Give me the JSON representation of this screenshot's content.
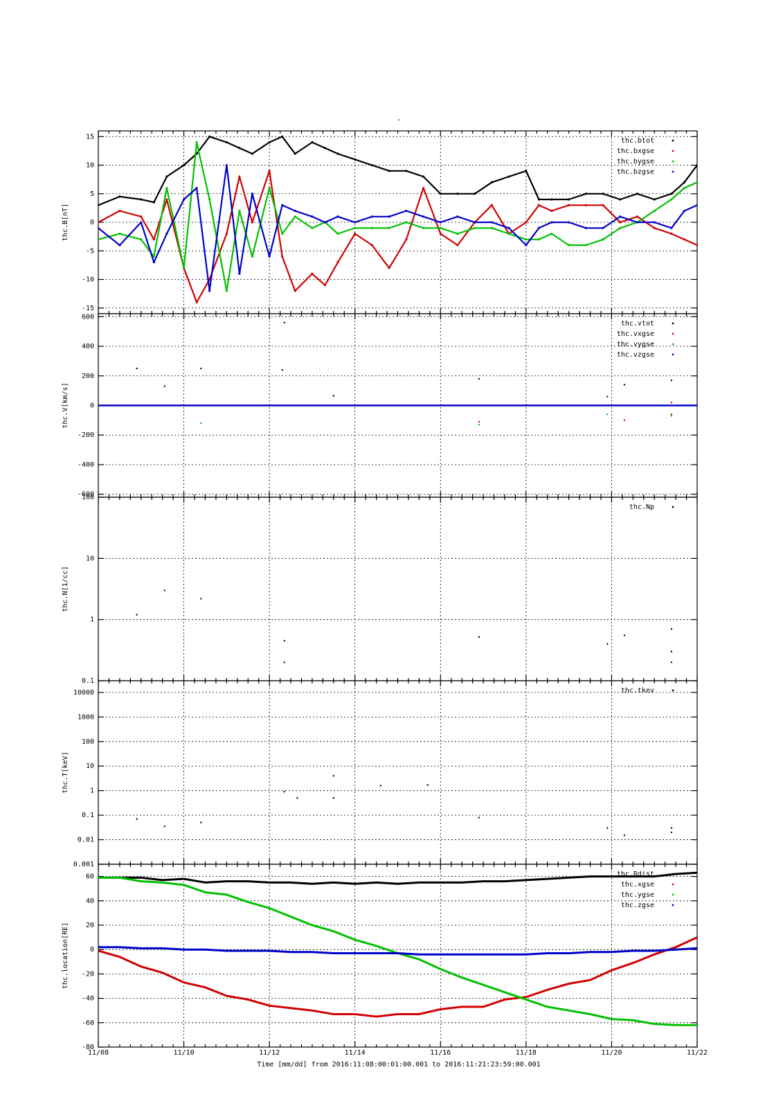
{
  "figure": {
    "title": "-",
    "time_label": "Time [mm/dd]  from 2016:11:08:00:01:00.001  to  2016:11:21:23:59:00.001",
    "x_ticks": [
      "11/08",
      "11/10",
      "11/12",
      "11/14",
      "11/16",
      "11/18",
      "11/20",
      "11/22"
    ]
  },
  "colors": {
    "black": "#000000",
    "red": "#d00000",
    "green": "#00c000",
    "blue": "#0000c8"
  },
  "chart_data": [
    {
      "type": "scatter",
      "ylabel": "thc.B[nT]",
      "ylim": [
        -16,
        16
      ],
      "yscale": "linear",
      "yticks": [
        -15,
        -10,
        -5,
        0,
        5,
        10,
        15
      ],
      "grid": true,
      "legend_position": "top-right",
      "x_unit": "day of November 2016",
      "xlim": [
        8,
        22
      ],
      "series": [
        {
          "name": "thc.btot",
          "color": "black",
          "x": [
            8.0,
            8.5,
            9.0,
            9.3,
            9.6,
            10.0,
            10.3,
            10.6,
            11.0,
            11.3,
            11.6,
            12.0,
            12.3,
            12.6,
            13.0,
            13.3,
            13.6,
            14.0,
            14.4,
            14.8,
            15.2,
            15.6,
            16.0,
            16.4,
            16.8,
            17.2,
            17.6,
            18.0,
            18.3,
            18.6,
            19.0,
            19.4,
            19.8,
            20.2,
            20.6,
            21.0,
            21.4,
            21.7,
            22.0
          ],
          "y": [
            3,
            4.5,
            4,
            3.5,
            8,
            10,
            12,
            15,
            14,
            13,
            12,
            14,
            15,
            12,
            14,
            13,
            12,
            11,
            10,
            9,
            9,
            8,
            5,
            5,
            5,
            7,
            8,
            9,
            4,
            4,
            4,
            5,
            5,
            4,
            5,
            4,
            5,
            7,
            10
          ]
        },
        {
          "name": "thc.bxgse",
          "color": "red",
          "x": [
            8.0,
            8.5,
            9.0,
            9.3,
            9.6,
            10.0,
            10.3,
            10.6,
            11.0,
            11.3,
            11.6,
            12.0,
            12.3,
            12.6,
            13.0,
            13.3,
            13.6,
            14.0,
            14.4,
            14.8,
            15.2,
            15.6,
            16.0,
            16.4,
            16.8,
            17.2,
            17.6,
            18.0,
            18.3,
            18.6,
            19.0,
            19.4,
            19.8,
            20.2,
            20.6,
            21.0,
            21.4,
            21.7,
            22.0
          ],
          "y": [
            0,
            2,
            1,
            -3,
            4,
            -8,
            -14,
            -10,
            -2,
            8,
            0,
            9,
            -6,
            -12,
            -9,
            -11,
            -7,
            -2,
            -4,
            -8,
            -3,
            6,
            -2,
            -4,
            0,
            3,
            -2,
            0,
            3,
            2,
            3,
            3,
            3,
            0,
            1,
            -1,
            -2,
            -3,
            -4
          ]
        },
        {
          "name": "thc.bygse",
          "color": "green",
          "x": [
            8.0,
            8.5,
            9.0,
            9.3,
            9.6,
            10.0,
            10.3,
            10.6,
            11.0,
            11.3,
            11.6,
            12.0,
            12.3,
            12.6,
            13.0,
            13.3,
            13.6,
            14.0,
            14.4,
            14.8,
            15.2,
            15.6,
            16.0,
            16.4,
            16.8,
            17.2,
            17.6,
            18.0,
            18.3,
            18.6,
            19.0,
            19.4,
            19.8,
            20.2,
            20.6,
            21.0,
            21.4,
            21.7,
            22.0
          ],
          "y": [
            -3,
            -2,
            -3,
            -6,
            6,
            -8,
            14,
            4,
            -12,
            2,
            -6,
            6,
            -2,
            1,
            -1,
            0,
            -2,
            -1,
            -1,
            -1,
            0,
            -1,
            -1,
            -2,
            -1,
            -1,
            -2,
            -3,
            -3,
            -2,
            -4,
            -4,
            -3,
            -1,
            0,
            2,
            4,
            6,
            7
          ]
        },
        {
          "name": "thc.bzgse",
          "color": "blue",
          "x": [
            8.0,
            8.5,
            9.0,
            9.3,
            9.6,
            10.0,
            10.3,
            10.6,
            11.0,
            11.3,
            11.6,
            12.0,
            12.3,
            12.6,
            13.0,
            13.3,
            13.6,
            14.0,
            14.4,
            14.8,
            15.2,
            15.6,
            16.0,
            16.4,
            16.8,
            17.2,
            17.6,
            18.0,
            18.3,
            18.6,
            19.0,
            19.4,
            19.8,
            20.2,
            20.6,
            21.0,
            21.4,
            21.7,
            22.0
          ],
          "y": [
            -1,
            -4,
            0,
            -7,
            -2,
            4,
            6,
            -12,
            10,
            -9,
            5,
            -6,
            3,
            2,
            1,
            0,
            1,
            0,
            1,
            1,
            2,
            1,
            0,
            1,
            0,
            0,
            -1,
            -4,
            -1,
            0,
            0,
            -1,
            -1,
            1,
            0,
            0,
            -1,
            2,
            3
          ]
        }
      ]
    },
    {
      "type": "scatter",
      "ylabel": "thc.V[km/s]",
      "ylim": [
        -620,
        620
      ],
      "yscale": "linear",
      "yticks": [
        -600,
        -400,
        -200,
        0,
        200,
        400,
        600
      ],
      "grid": true,
      "legend_position": "top-right",
      "x_unit": "day of November 2016",
      "xlim": [
        8,
        22
      ],
      "series": [
        {
          "name": "thc.vtot",
          "color": "black",
          "x": [
            8.9,
            9.55,
            10.4,
            12.35,
            12.3,
            13.5,
            16.9,
            19.9,
            20.3,
            21.4
          ],
          "y": [
            250,
            130,
            250,
            560,
            240,
            65,
            180,
            60,
            140,
            170
          ]
        },
        {
          "name": "thc.vxgse",
          "color": "red",
          "x": [
            16.9,
            20.3,
            21.4,
            21.4
          ],
          "y": [
            -110,
            -100,
            -60,
            20
          ]
        },
        {
          "name": "thc.vygse",
          "color": "green",
          "x": [
            10.4,
            16.9,
            19.9,
            21.4
          ],
          "y": [
            -120,
            -130,
            -60,
            -70
          ]
        },
        {
          "name": "thc.vzgse",
          "color": "blue",
          "x": [
            8.0,
            11.0,
            14.0,
            17.0,
            20.0,
            22.0
          ],
          "y": [
            0,
            0,
            0,
            0,
            0,
            0
          ]
        }
      ]
    },
    {
      "type": "scatter",
      "ylabel": "thc.N[1/cc]",
      "ylim": [
        0.1,
        100
      ],
      "yscale": "log",
      "yticks": [
        0.1,
        1,
        10,
        100
      ],
      "grid": true,
      "legend_position": "top-right",
      "x_unit": "day of November 2016",
      "xlim": [
        8,
        22
      ],
      "series": [
        {
          "name": "thc.Np",
          "color": "black",
          "x": [
            8.9,
            9.55,
            10.4,
            12.35,
            12.35,
            16.9,
            19.9,
            20.3,
            21.4,
            21.4,
            21.4
          ],
          "y": [
            1.2,
            3.0,
            2.2,
            0.45,
            0.2,
            0.52,
            0.4,
            0.55,
            0.7,
            0.3,
            0.2
          ]
        }
      ]
    },
    {
      "type": "scatter",
      "ylabel": "thc.T[keV]",
      "ylim": [
        0.001,
        30000
      ],
      "yscale": "log",
      "yticks": [
        0.001,
        0.01,
        0.1,
        1,
        10,
        100,
        1000,
        10000
      ],
      "grid": true,
      "legend_position": "top-right",
      "x_unit": "day of November 2016",
      "xlim": [
        8,
        22
      ],
      "series": [
        {
          "name": "thc.tkev",
          "color": "black",
          "x": [
            8.9,
            9.55,
            10.4,
            12.35,
            12.65,
            13.5,
            13.5,
            14.6,
            15.7,
            16.9,
            19.9,
            20.3,
            21.4,
            21.4
          ],
          "y": [
            0.07,
            0.035,
            0.05,
            0.9,
            0.5,
            4,
            0.5,
            1.6,
            1.7,
            0.08,
            0.03,
            0.015,
            0.03,
            0.02
          ]
        }
      ]
    },
    {
      "type": "line",
      "ylabel": "thc.location[RE]",
      "ylim": [
        -80,
        70
      ],
      "yscale": "linear",
      "yticks": [
        -80,
        -60,
        -40,
        -20,
        0,
        20,
        40,
        60
      ],
      "grid": true,
      "legend_position": "top-right",
      "x_unit": "day of November 2016",
      "xlim": [
        8,
        22
      ],
      "series": [
        {
          "name": "thc.Rdist",
          "color": "black",
          "x": [
            8.0,
            8.5,
            9.0,
            9.5,
            10.0,
            10.5,
            11.0,
            11.5,
            12.0,
            12.5,
            13.0,
            13.5,
            14.0,
            14.5,
            15.0,
            15.5,
            16.0,
            16.5,
            17.0,
            17.5,
            18.0,
            18.5,
            19.0,
            19.5,
            20.0,
            20.5,
            21.0,
            21.5,
            22.0
          ],
          "y": [
            59,
            59,
            59,
            57,
            58,
            55,
            56,
            56,
            55,
            55,
            54,
            55,
            54,
            55,
            54,
            55,
            55,
            55,
            56,
            56,
            57,
            58,
            59,
            60,
            60,
            60,
            60,
            62,
            63
          ]
        },
        {
          "name": "thc.xgse",
          "color": "red",
          "x": [
            8.0,
            8.5,
            9.0,
            9.5,
            10.0,
            10.5,
            11.0,
            11.5,
            12.0,
            12.5,
            13.0,
            13.5,
            14.0,
            14.5,
            15.0,
            15.5,
            16.0,
            16.5,
            17.0,
            17.5,
            18.0,
            18.5,
            19.0,
            19.5,
            20.0,
            20.5,
            21.0,
            21.5,
            22.0
          ],
          "y": [
            -1,
            -6,
            -14,
            -19,
            -27,
            -31,
            -38,
            -41,
            -46,
            -48,
            -50,
            -53,
            -53,
            -55,
            -53,
            -53,
            -49,
            -47,
            -47,
            -41,
            -39,
            -33,
            -28,
            -25,
            -17,
            -11,
            -4,
            2,
            10
          ]
        },
        {
          "name": "thc.ygse",
          "color": "green",
          "x": [
            8.0,
            8.5,
            9.0,
            9.5,
            10.0,
            10.5,
            11.0,
            11.5,
            12.0,
            12.5,
            13.0,
            13.5,
            14.0,
            14.5,
            15.0,
            15.5,
            16.0,
            16.5,
            17.0,
            17.5,
            18.0,
            18.5,
            19.0,
            19.5,
            20.0,
            20.5,
            21.0,
            21.5,
            22.0
          ],
          "y": [
            59,
            59,
            56,
            55,
            53,
            47,
            45,
            39,
            34,
            27,
            20,
            15,
            8,
            3,
            -3,
            -8,
            -16,
            -23,
            -29,
            -35,
            -41,
            -47,
            -50,
            -53,
            -57,
            -58,
            -61,
            -62,
            -62
          ]
        },
        {
          "name": "thc.zgse",
          "color": "blue",
          "x": [
            8.0,
            8.5,
            9.0,
            9.5,
            10.0,
            10.5,
            11.0,
            11.5,
            12.0,
            12.5,
            13.0,
            13.5,
            14.0,
            14.5,
            15.0,
            15.5,
            16.0,
            16.5,
            17.0,
            17.5,
            18.0,
            18.5,
            19.0,
            19.5,
            20.0,
            20.5,
            21.0,
            21.5,
            22.0
          ],
          "y": [
            2,
            2,
            1,
            1,
            0,
            0,
            -1,
            -1,
            -1,
            -2,
            -2,
            -3,
            -3,
            -3,
            -3,
            -4,
            -4,
            -4,
            -4,
            -4,
            -4,
            -3,
            -3,
            -2,
            -2,
            -1,
            -1,
            0,
            1
          ]
        }
      ]
    }
  ]
}
